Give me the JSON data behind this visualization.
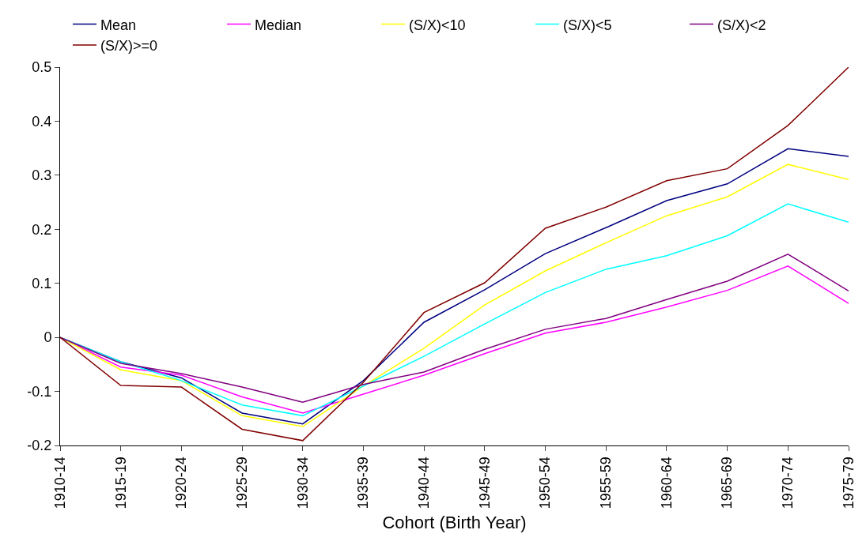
{
  "chart_data": {
    "type": "line",
    "xlabel": "Cohort (Birth Year)",
    "categories": [
      "1910-14",
      "1915-19",
      "1920-24",
      "1925-29",
      "1930-34",
      "1935-39",
      "1940-44",
      "1945-49",
      "1950-54",
      "1955-59",
      "1960-64",
      "1965-69",
      "1970-74",
      "1975-79"
    ],
    "series": [
      {
        "name": "Mean",
        "color": "#000080",
        "values": [
          0,
          -0.045,
          -0.075,
          -0.14,
          -0.16,
          -0.08,
          0.028,
          0.088,
          0.155,
          0.203,
          0.253,
          0.284,
          0.349,
          0.335
        ]
      },
      {
        "name": "Median",
        "color": "#ff00ff",
        "values": [
          0,
          -0.055,
          -0.07,
          -0.11,
          -0.14,
          -0.105,
          -0.07,
          -0.03,
          0.008,
          0.028,
          0.056,
          0.087,
          0.132,
          0.063
        ]
      },
      {
        "name": "(S/X)<10",
        "color": "#ffff00",
        "values": [
          0,
          -0.06,
          -0.08,
          -0.145,
          -0.165,
          -0.09,
          -0.02,
          0.06,
          0.123,
          0.175,
          0.225,
          0.26,
          0.32,
          0.292
        ]
      },
      {
        "name": "(S/X)<5",
        "color": "#00ffff",
        "values": [
          0,
          -0.045,
          -0.08,
          -0.125,
          -0.145,
          -0.09,
          -0.035,
          0.025,
          0.083,
          0.126,
          0.151,
          0.188,
          0.247,
          0.213
        ]
      },
      {
        "name": "(S/X)<2",
        "color": "#800080",
        "values": [
          0,
          -0.048,
          -0.067,
          -0.092,
          -0.12,
          -0.087,
          -0.064,
          -0.022,
          0.015,
          0.035,
          0.07,
          0.104,
          0.154,
          0.086
        ]
      },
      {
        "name": "(S/X)>=0",
        "color": "#800000",
        "values": [
          0,
          -0.089,
          -0.092,
          -0.17,
          -0.191,
          -0.083,
          0.046,
          0.101,
          0.202,
          0.241,
          0.29,
          0.312,
          0.392,
          0.5
        ]
      }
    ],
    "ylim": [
      -0.2,
      0.5
    ],
    "yticks": [
      -0.2,
      -0.1,
      0,
      0.1,
      0.2,
      0.3,
      0.4,
      0.5
    ],
    "grid": false,
    "legend": "top",
    "marker": "none",
    "line_style": "solid"
  }
}
